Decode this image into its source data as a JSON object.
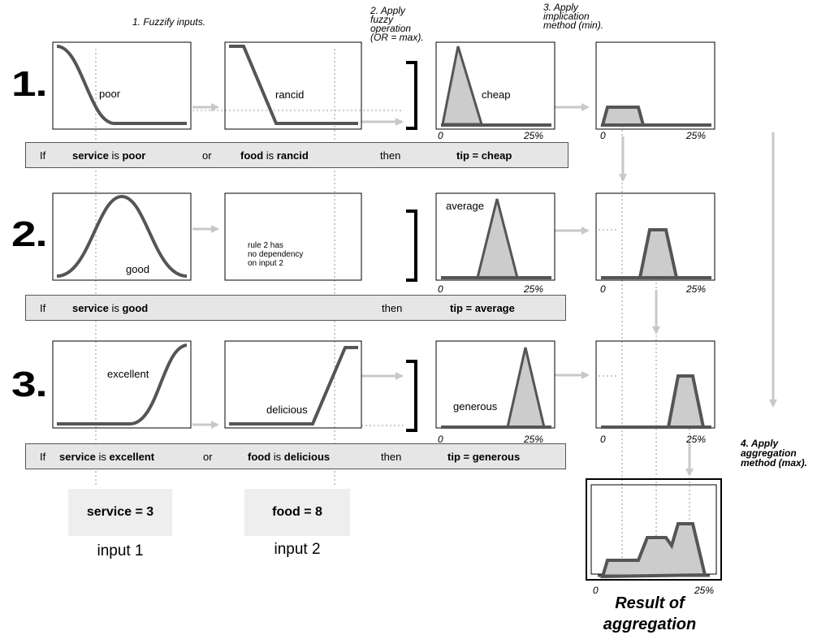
{
  "steps": {
    "step1": "1. Fuzzify inputs.",
    "step2": [
      "2. Apply",
      "fuzzy",
      "operation",
      "(OR = max)."
    ],
    "step3": [
      "3. Apply",
      "implication",
      "method (min)."
    ],
    "step4": [
      "4. Apply",
      "aggregation",
      "method (max)."
    ]
  },
  "rules": [
    {
      "number": "1.",
      "input1_label": "poor",
      "input2_label": "rancid",
      "output_label": "cheap",
      "statement": {
        "if": "If",
        "part1_bold": "service",
        "part1_mid": " is ",
        "part1_term": "poor",
        "connector": "or",
        "part2_bold": "food",
        "part2_mid": " is ",
        "part2_term": "rancid",
        "then": "then",
        "tip": "tip = cheap"
      }
    },
    {
      "number": "2.",
      "input1_label": "good",
      "input2_note": [
        "rule 2 has",
        "no dependency",
        "on input 2"
      ],
      "output_label": "average",
      "statement": {
        "if": "If",
        "part1_bold": "service",
        "part1_mid": " is ",
        "part1_term": "good",
        "then": "then",
        "tip": "tip = average"
      }
    },
    {
      "number": "3.",
      "input1_label": "excellent",
      "input2_label": "delicious",
      "output_label": "generous",
      "statement": {
        "if": "If",
        "part1_bold": "service",
        "part1_mid": " is ",
        "part1_term": "excellent",
        "connector": "or",
        "part2_bold": "food",
        "part2_mid": " is ",
        "part2_term": "delicious",
        "then": "then",
        "tip": "tip = generous"
      }
    }
  ],
  "axis": {
    "min": "0",
    "max": "25%"
  },
  "inputs": {
    "input1_value": "service = 3",
    "input1_caption": "input 1",
    "input2_value": "food = 8",
    "input2_caption": "input 2"
  },
  "result": [
    "Result of",
    "aggregation"
  ],
  "colors": {
    "curve": "#555555",
    "fill": "#cccccc",
    "guide": "#c8c8c8",
    "bar": "#e6e6e6"
  }
}
